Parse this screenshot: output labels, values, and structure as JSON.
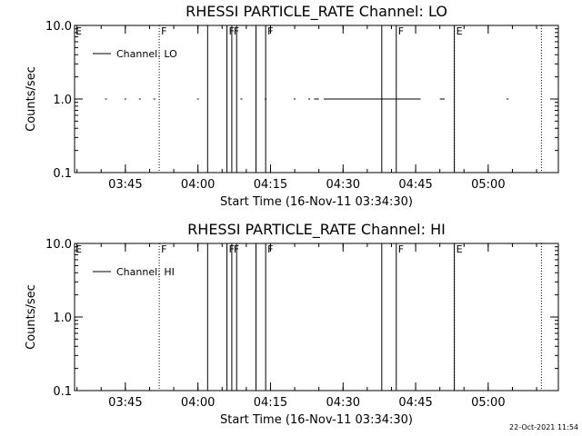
{
  "footer": {
    "timestamp": "22-Oct-2021 11:54"
  },
  "chart_data": [
    {
      "type": "line",
      "title": "RHESSI PARTICLE_RATE Channel: LO",
      "xlabel": "Start Time (16-Nov-11 03:34:30)",
      "ylabel": "Counts/sec",
      "yscale": "log",
      "ylim": [
        0.1,
        10.0
      ],
      "ytick_labels": [
        "0.1",
        "1.0",
        "10.0"
      ],
      "xlim": [
        "03:34:30",
        "05:14:30"
      ],
      "xtick_labels": [
        "03:45",
        "04:00",
        "04:15",
        "04:30",
        "04:45",
        "05:00"
      ],
      "legend": {
        "position": "top-left",
        "entries": [
          "Channel: LO"
        ]
      },
      "series": [
        {
          "name": "Channel: LO",
          "segments": [
            {
              "x": [
                "03:41",
                "03:41"
              ],
              "y": [
                1.0,
                1.0
              ]
            },
            {
              "x": [
                "03:45",
                "03:45"
              ],
              "y": [
                1.0,
                1.0
              ]
            },
            {
              "x": [
                "03:48",
                "03:48"
              ],
              "y": [
                1.0,
                1.0
              ]
            },
            {
              "x": [
                "03:51",
                "03:51"
              ],
              "y": [
                1.0,
                1.0
              ]
            },
            {
              "x": [
                "04:00",
                "04:00"
              ],
              "y": [
                1.0,
                1.0
              ]
            },
            {
              "x": [
                "04:09",
                "04:09"
              ],
              "y": [
                1.0,
                1.0
              ]
            },
            {
              "x": [
                "04:14",
                "04:14"
              ],
              "y": [
                1.0,
                1.0
              ]
            },
            {
              "x": [
                "04:20",
                "04:20"
              ],
              "y": [
                1.0,
                1.0
              ]
            },
            {
              "x": [
                "04:23",
                "04:23"
              ],
              "y": [
                1.0,
                1.0
              ]
            },
            {
              "x": [
                "04:24",
                "04:25"
              ],
              "y": [
                1.0,
                1.0
              ]
            },
            {
              "x": [
                "04:26",
                "04:38"
              ],
              "y": [
                1.0,
                1.0
              ]
            },
            {
              "x": [
                "04:38",
                "04:42"
              ],
              "y": [
                1.0,
                1.0
              ]
            },
            {
              "x": [
                "04:42",
                "04:46"
              ],
              "y": [
                1.0,
                1.0
              ]
            },
            {
              "x": [
                "04:50",
                "04:51"
              ],
              "y": [
                1.0,
                1.0
              ]
            },
            {
              "x": [
                "05:04",
                "05:04"
              ],
              "y": [
                1.0,
                1.0
              ]
            }
          ]
        }
      ],
      "flag_lines": [
        {
          "t": "03:52",
          "label": "F",
          "style": "dotted"
        },
        {
          "t": "04:02",
          "label": "",
          "style": "solid"
        },
        {
          "t": "04:06",
          "label": "F",
          "style": "solid"
        },
        {
          "t": "04:07",
          "label": "F",
          "style": "solid"
        },
        {
          "t": "04:08",
          "label": "",
          "style": "solid"
        },
        {
          "t": "04:12",
          "label": "",
          "style": "solid"
        },
        {
          "t": "04:14",
          "label": "F",
          "style": "solid"
        },
        {
          "t": "04:38",
          "label": "",
          "style": "solid"
        },
        {
          "t": "04:41",
          "label": "F",
          "style": "solid"
        },
        {
          "t": "04:53",
          "label": "",
          "style": "solid"
        },
        {
          "t": "04:53",
          "label": "E",
          "style": "dotted"
        },
        {
          "t": "05:11",
          "label": "",
          "style": "dotted"
        }
      ],
      "edge_labels": [
        {
          "t": "03:34:30",
          "label": "E"
        }
      ]
    },
    {
      "type": "line",
      "title": "RHESSI PARTICLE_RATE Channel: HI",
      "xlabel": "Start Time (16-Nov-11 03:34:30)",
      "ylabel": "Counts/sec",
      "yscale": "log",
      "ylim": [
        0.1,
        10.0
      ],
      "ytick_labels": [
        "0.1",
        "1.0",
        "10.0"
      ],
      "xlim": [
        "03:34:30",
        "05:14:30"
      ],
      "xtick_labels": [
        "03:45",
        "04:00",
        "04:15",
        "04:30",
        "04:45",
        "05:00"
      ],
      "legend": {
        "position": "top-left",
        "entries": [
          "Channel: HI"
        ]
      },
      "series": [
        {
          "name": "Channel: HI",
          "segments": []
        }
      ],
      "flag_lines": [
        {
          "t": "03:52",
          "label": "F",
          "style": "dotted"
        },
        {
          "t": "04:02",
          "label": "",
          "style": "solid"
        },
        {
          "t": "04:06",
          "label": "F",
          "style": "solid"
        },
        {
          "t": "04:07",
          "label": "F",
          "style": "solid"
        },
        {
          "t": "04:08",
          "label": "",
          "style": "solid"
        },
        {
          "t": "04:12",
          "label": "",
          "style": "solid"
        },
        {
          "t": "04:14",
          "label": "F",
          "style": "solid"
        },
        {
          "t": "04:38",
          "label": "",
          "style": "solid"
        },
        {
          "t": "04:41",
          "label": "F",
          "style": "solid"
        },
        {
          "t": "04:53",
          "label": "",
          "style": "solid"
        },
        {
          "t": "04:53",
          "label": "E",
          "style": "dotted"
        },
        {
          "t": "05:11",
          "label": "",
          "style": "dotted"
        }
      ],
      "edge_labels": [
        {
          "t": "03:34:30",
          "label": "E"
        }
      ]
    }
  ]
}
